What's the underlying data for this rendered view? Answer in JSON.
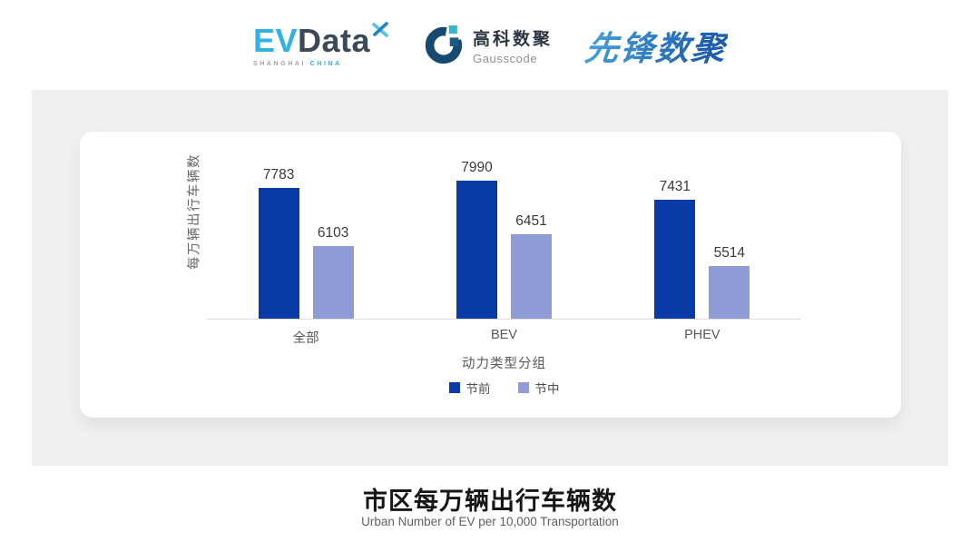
{
  "header": {
    "evdata": {
      "ev": "EV",
      "data": "Data",
      "mark_icon": "x-star-icon",
      "sub_left": "SHANGHAI",
      "sub_right": "CHINA"
    },
    "gausscode": {
      "mark_icon": "g-ring-icon",
      "cn": "高科数聚",
      "en": "Gausscode"
    },
    "pioneer": {
      "text": "先锋数聚"
    }
  },
  "chart_data": {
    "type": "bar",
    "categories": [
      "全部",
      "BEV",
      "PHEV"
    ],
    "series": [
      {
        "name": "节前",
        "color": "#0a3aa6",
        "values": [
          7783,
          7990,
          7431
        ]
      },
      {
        "name": "节中",
        "color": "#8f9bd5",
        "values": [
          6103,
          6451,
          5514
        ]
      }
    ],
    "ylabel": "每万辆出行车辆数",
    "xlabel": "动力类型分组",
    "ylim": [
      4000,
      8600
    ],
    "grid": false,
    "legend_position": "bottom",
    "value_labels": true
  },
  "footer": {
    "title": "市区每万辆出行车辆数",
    "subtitle": "Urban Number of EV per 10,000 Transportation"
  },
  "colors": {
    "panel_bg": "#f0f0f0",
    "card_bg": "#ffffff",
    "axis_line": "#dcdcdc",
    "evdata_blue": "#33b1e4",
    "evdata_slate": "#3c4a57",
    "gauss_navy": "#174a70",
    "pioneer_blue_light": "#47a3dc",
    "pioneer_blue_dark": "#1d5fae"
  }
}
